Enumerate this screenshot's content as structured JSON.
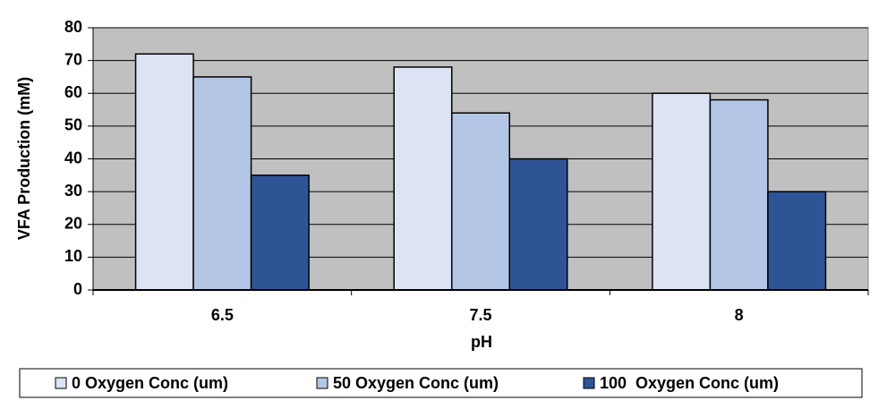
{
  "chart_data": {
    "type": "bar",
    "x_label": "pH",
    "y_label": "VFA Production (mM)",
    "categories": [
      "6.5",
      "7.5",
      "8"
    ],
    "series": [
      {
        "name": "0 Oxygen Conc (um)",
        "color": "#dce3f4",
        "values": [
          72,
          68,
          60
        ]
      },
      {
        "name": "50 Oxygen Conc (um)",
        "color": "#b4c6e6",
        "values": [
          65,
          54,
          58
        ]
      },
      {
        "name": "100  Oxygen Conc (um)",
        "color": "#2f5496",
        "values": [
          35,
          40,
          30
        ]
      }
    ],
    "ylim": [
      0,
      80
    ],
    "yticks": [
      0,
      10,
      20,
      30,
      40,
      50,
      60,
      70,
      80
    ],
    "grid": true,
    "legend": "bottom"
  }
}
